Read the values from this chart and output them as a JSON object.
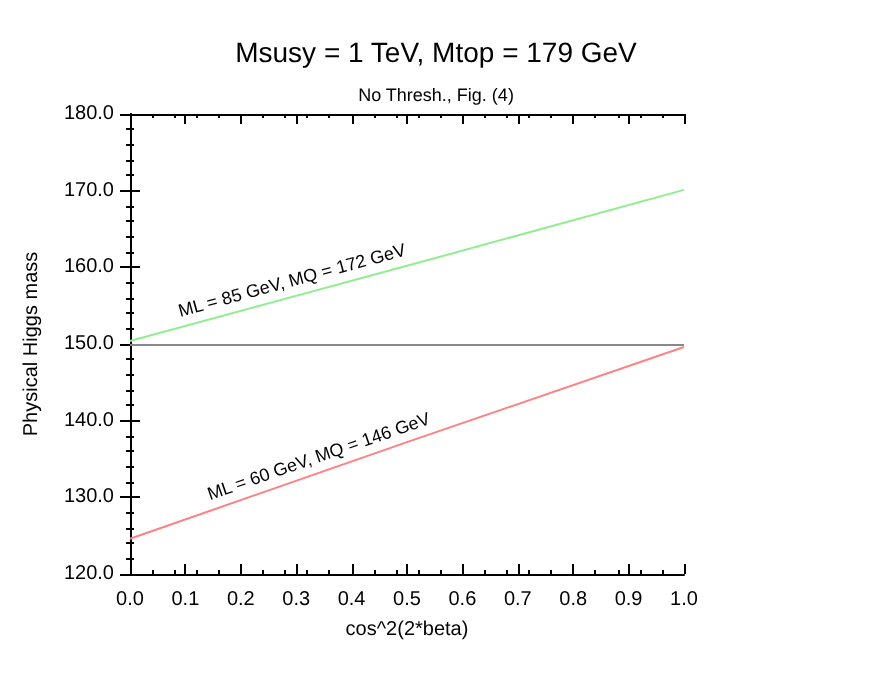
{
  "chart_data": {
    "type": "line",
    "title": "Msusy = 1 TeV, Mtop = 179 GeV",
    "subtitle": "No Thresh., Fig. (4)",
    "xlabel": "cos^2(2*beta)",
    "ylabel": "Physical Higgs mass",
    "x": [
      0,
      0.5,
      1
    ],
    "series": [
      {
        "color": "#90ee90",
        "values": [
          150.4,
          160.2,
          170.1
        ]
      },
      {
        "color": "#ff8080",
        "values": [
          124.6,
          137.2,
          149.6
        ]
      }
    ],
    "ref_lines": [
      {
        "axis": "y",
        "value": 150,
        "color": "#888888"
      }
    ],
    "annotations": [
      {
        "text": "ML = 85 GeV, MQ = 172 GeV",
        "x": 0.3,
        "y": 156.3
      },
      {
        "text": "ML = 60 GeV, MQ = 146 GeV",
        "x": 0.35,
        "y": 133.4
      }
    ],
    "xlim": [
      0,
      1
    ],
    "xticks": [
      {
        "value": 0,
        "label": "0.0"
      },
      {
        "value": 0.1,
        "label": "0.1"
      },
      {
        "value": 0.2,
        "label": "0.2"
      },
      {
        "value": 0.3,
        "label": "0.3"
      },
      {
        "value": 0.4,
        "label": "0.4"
      },
      {
        "value": 0.5,
        "label": "0.5"
      },
      {
        "value": 0.6,
        "label": "0.6"
      },
      {
        "value": 0.7,
        "label": "0.7"
      },
      {
        "value": 0.8,
        "label": "0.8"
      },
      {
        "value": 0.9,
        "label": "0.9"
      },
      {
        "value": 1,
        "label": "1.0"
      }
    ],
    "ylim": [
      120,
      180
    ],
    "yticks": [
      {
        "value": 120,
        "label": "120.0"
      },
      {
        "value": 130,
        "label": "130.0"
      },
      {
        "value": 140,
        "label": "140.0"
      },
      {
        "value": 150,
        "label": "150.0"
      },
      {
        "value": 160,
        "label": "160.0"
      },
      {
        "value": 170,
        "label": "170.0"
      },
      {
        "value": 180,
        "label": "180.0"
      }
    ],
    "grid": false,
    "marker": "none",
    "line_style": "solid"
  }
}
